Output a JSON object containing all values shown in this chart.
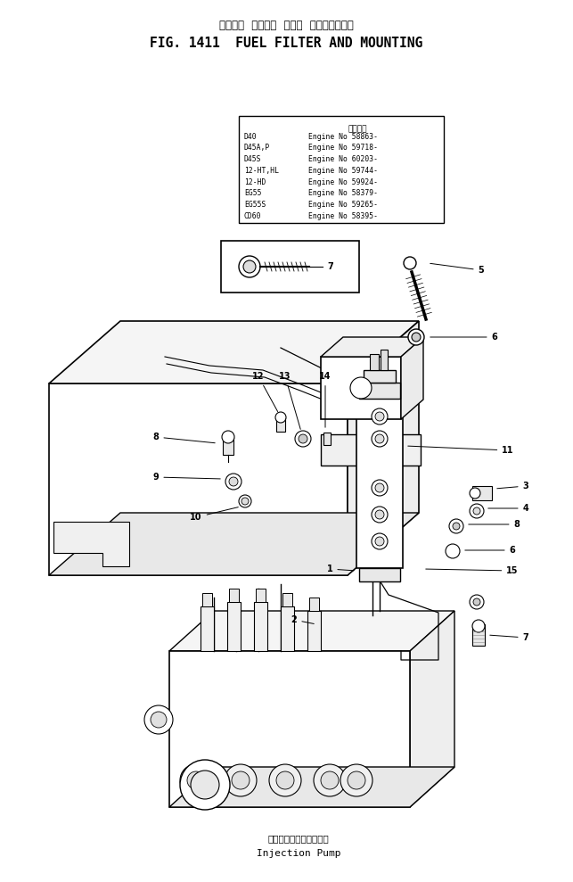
{
  "title_japanese": "フェエル  フィルタ  および  マウンティング",
  "title_english": "FIG. 1411  FUEL FILTER AND MOUNTING",
  "subtitle_jp": "インジェクションポンプ",
  "subtitle_en": "Injection Pump",
  "app_header": "適用番号",
  "applicability": [
    [
      "D40",
      "Engine No 58863-"
    ],
    [
      "D45A,P",
      "Engine No 59718-"
    ],
    [
      "D45S",
      "Engine No 60203-"
    ],
    [
      "12-HT,HL",
      "Engine No 59744-"
    ],
    [
      "12-HD",
      "Engine No 59924-"
    ],
    [
      "EG55",
      "Engine No 58379-"
    ],
    [
      "EG55S",
      "Engine No 59265-"
    ],
    [
      "CD60",
      "Engine No 58395-"
    ]
  ],
  "bg": "#ffffff",
  "lc": "#000000"
}
